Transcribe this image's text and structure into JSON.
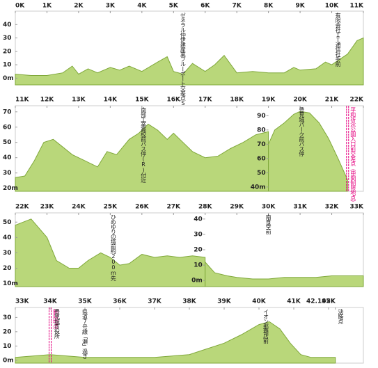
{
  "chart_data": [
    {
      "type": "area",
      "color": "#b9d77a",
      "line_color": "#7fa83a",
      "xlim": [
        0,
        11
      ],
      "xticks": [
        {
          "value": 0,
          "label": "0K"
        },
        {
          "value": 1,
          "label": "1K"
        },
        {
          "value": 2,
          "label": "2K"
        },
        {
          "value": 3,
          "label": "3K"
        },
        {
          "value": 4,
          "label": "4K"
        },
        {
          "value": 5,
          "label": "5K"
        },
        {
          "value": 6,
          "label": "6K"
        },
        {
          "value": 7,
          "label": "7K"
        },
        {
          "value": 8,
          "label": "8K"
        },
        {
          "value": 9,
          "label": "9K"
        },
        {
          "value": 10,
          "label": "10K"
        },
        {
          "value": 11,
          "label": "11K"
        }
      ],
      "ylim": [
        -5,
        50
      ],
      "yticks": [
        {
          "value": 0,
          "label": "0m"
        },
        10,
        20,
        30,
        40
      ],
      "series": [
        {
          "x": [
            0,
            0.5,
            1,
            1.5,
            1.8,
            2,
            2.3,
            2.6,
            3,
            3.3,
            3.6,
            4,
            4.5,
            4.8,
            5,
            5.3,
            5.6,
            6,
            6.3,
            6.6,
            7,
            7.5,
            8,
            8.5,
            8.8,
            9,
            9.5,
            9.8,
            10,
            10.5,
            10.8,
            11
          ],
          "values": [
            3,
            2,
            2,
            4,
            9,
            3,
            7,
            4,
            8,
            6,
            9,
            5,
            12,
            16,
            5,
            3,
            11,
            5,
            10,
            17,
            4,
            5,
            4,
            4,
            8,
            6,
            7,
            12,
            10,
            18,
            28,
            30
          ]
        }
      ],
      "annotations": [
        {
          "text": "ゼネラル仲伊建産業ブルーポート交差点SS手前",
          "x": 5.3
        },
        {
          "text": "有限会社ＩＴ通信社手前",
          "x": 10.2
        }
      ]
    },
    {
      "type": "area",
      "color": "#b9d77a",
      "line_color": "#7fa83a",
      "xlim": [
        11,
        22
      ],
      "xticks": [
        {
          "value": 11,
          "label": "11K"
        },
        {
          "value": 12,
          "label": "12K"
        },
        {
          "value": 13,
          "label": "13K"
        },
        {
          "value": 14,
          "label": "14K"
        },
        {
          "value": 15,
          "label": "15K"
        },
        {
          "value": 16,
          "label": "16K"
        },
        {
          "value": 17,
          "label": "17K"
        },
        {
          "value": 18,
          "label": "18K"
        },
        {
          "value": 19,
          "label": "19K"
        },
        {
          "value": 20,
          "label": "20K"
        },
        {
          "value": 21,
          "label": "21K"
        },
        {
          "value": 22,
          "label": "22K"
        }
      ],
      "ylim": [
        18,
        74
      ],
      "yticks": [
        {
          "value": 20,
          "label": "20m"
        },
        30,
        40,
        50,
        60,
        70
      ],
      "y2lim": [
        37,
        97
      ],
      "y2ticks": [
        {
          "value": 40,
          "label": "40m"
        },
        50,
        60,
        70,
        80,
        90
      ],
      "series": [
        {
          "x": [
            11,
            11.3,
            11.6,
            11.9,
            12.2,
            12.5,
            12.8,
            13.2,
            13.6,
            13.9,
            14.2,
            14.6,
            14.9,
            15.2,
            15.5,
            15.8,
            16,
            16.3,
            16.6,
            17,
            17.4,
            17.8,
            18.2,
            18.6,
            19
          ],
          "values": [
            27,
            28,
            38,
            50,
            52,
            47,
            42,
            38,
            34,
            44,
            42,
            52,
            56,
            62,
            58,
            52,
            56,
            50,
            44,
            40,
            41,
            46,
            50,
            55,
            57
          ]
        },
        {
          "axis": "y2",
          "x": [
            19,
            19.2,
            19.5,
            19.8,
            20,
            20.3,
            20.6,
            20.9,
            21.2,
            21.5
          ],
          "values": [
            70,
            80,
            85,
            91,
            93,
            92,
            85,
            74,
            60,
            45
          ]
        }
      ],
      "annotations": [
        {
          "text": "南部工業高校前バス停(R)付近",
          "x": 15.05
        },
        {
          "text": "豊見城パーク前バス停",
          "x": 20.05
        },
        {
          "text": "平和祈念公園入口前交差点（中間制限地点）",
          "x": 21.5,
          "color": "#e4007f"
        }
      ]
    },
    {
      "type": "area",
      "color": "#b9d77a",
      "line_color": "#7fa83a",
      "xlim": [
        22,
        33
      ],
      "xticks": [
        {
          "value": 22,
          "label": "22K"
        },
        {
          "value": 23,
          "label": "23K"
        },
        {
          "value": 24,
          "label": "24K"
        },
        {
          "value": 25,
          "label": "25K"
        },
        {
          "value": 26,
          "label": "26K"
        },
        {
          "value": 27,
          "label": "27K"
        },
        {
          "value": 28,
          "label": "28K"
        },
        {
          "value": 29,
          "label": "29K"
        },
        {
          "value": 30,
          "label": "30K"
        },
        {
          "value": 31,
          "label": "31K"
        },
        {
          "value": 32,
          "label": "32K"
        },
        {
          "value": 33,
          "label": "33K"
        }
      ],
      "ylim": [
        8,
        56
      ],
      "yticks": [
        {
          "value": 10,
          "label": "10m"
        },
        20,
        30,
        40,
        50
      ],
      "y2lim": [
        -4,
        44
      ],
      "y2ticks": [
        {
          "value": 0,
          "label": "0m"
        },
        10,
        20,
        30,
        40
      ],
      "series": [
        {
          "x": [
            22,
            22.5,
            23,
            23.3,
            23.7,
            24,
            24.3,
            24.7,
            25,
            25.3,
            25.6,
            26,
            26.4,
            26.8,
            27.2,
            27.6,
            28
          ],
          "values": [
            48,
            52,
            40,
            25,
            20,
            20,
            25,
            30,
            27,
            22,
            23,
            29,
            27,
            28,
            27,
            28,
            27
          ]
        },
        {
          "axis": "y2",
          "x": [
            28,
            28.3,
            28.7,
            29,
            29.5,
            30,
            30.5,
            31,
            31.5,
            32,
            32.5,
            33
          ],
          "values": [
            12,
            5,
            3,
            2,
            1,
            1,
            2,
            2,
            2,
            3,
            3,
            3
          ]
        }
      ],
      "annotations": [
        {
          "text": "ひめゆりの塔前約200m先",
          "x": 25.1
        },
        {
          "text": "南食堂前",
          "x": 30
        }
      ]
    },
    {
      "type": "area",
      "color": "#b9d77a",
      "line_color": "#7fa83a",
      "xlim": [
        33,
        43
      ],
      "xticks": [
        {
          "value": 33,
          "label": "33K"
        },
        {
          "value": 34,
          "label": "34K"
        },
        {
          "value": 35,
          "label": "35K"
        },
        {
          "value": 36,
          "label": "36K"
        },
        {
          "value": 37,
          "label": "37K"
        },
        {
          "value": 38,
          "label": "38K"
        },
        {
          "value": 39,
          "label": "39K"
        },
        {
          "value": 40,
          "label": "40K"
        },
        {
          "value": 41,
          "label": "41K"
        },
        {
          "value": 42,
          "label": "42K"
        },
        {
          "value": 42.195,
          "label": "42.195K"
        }
      ],
      "ylim": [
        -2,
        37
      ],
      "yticks": [
        {
          "value": 0,
          "label": "0m"
        },
        10,
        20,
        30
      ],
      "series": [
        {
          "x": [
            33,
            33.5,
            34,
            34.5,
            35,
            36,
            37,
            37.5,
            38,
            38.5,
            39,
            39.5,
            40,
            40.3,
            40.6,
            40.9,
            41.2,
            41.5,
            42.195
          ],
          "values": [
            2,
            3,
            4,
            3,
            2,
            2,
            2,
            3,
            4,
            8,
            12,
            18,
            25,
            27,
            22,
            12,
            4,
            2,
            2
          ]
        }
      ],
      "annotations": [
        {
          "text": "制限地点",
          "x": 34,
          "color": "#e4007f"
        },
        {
          "text": "豊見城市役所",
          "x": 34.2
        },
        {
          "text": "県道7号線「瀬」過ぎ",
          "x": 35
        },
        {
          "text": "イオン那覇店前",
          "x": 40.2
        },
        {
          "text": "決勝点",
          "x": 42.35
        }
      ]
    }
  ]
}
